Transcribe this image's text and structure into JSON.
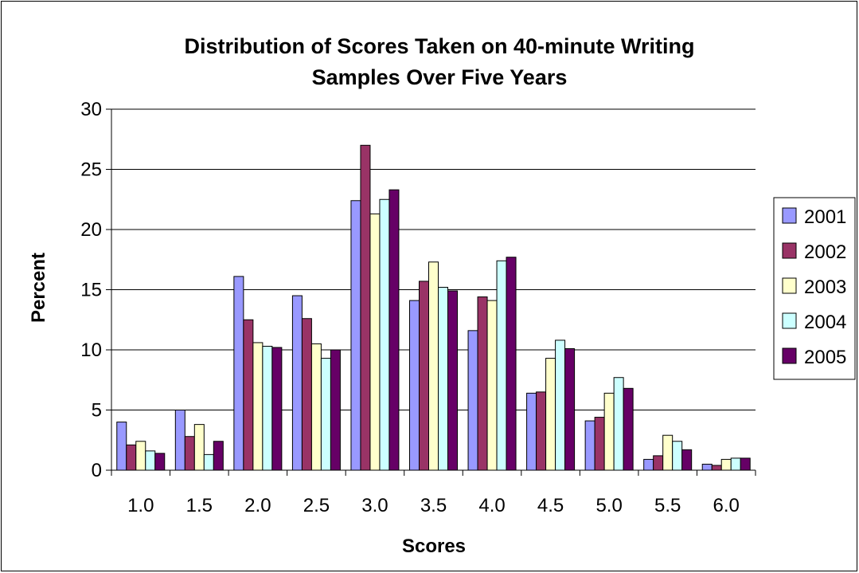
{
  "chart_data": {
    "type": "bar",
    "title": [
      "Distribution of Scores Taken on 40-minute Writing",
      "Samples Over Five Years"
    ],
    "xlabel": "Scores",
    "ylabel": "Percent",
    "categories": [
      "1.0",
      "1.5",
      "2.0",
      "2.5",
      "3.0",
      "3.5",
      "4.0",
      "4.5",
      "5.0",
      "5.5",
      "6.0"
    ],
    "ylim": [
      0,
      30
    ],
    "yticks": [
      0,
      5,
      10,
      15,
      20,
      25,
      30
    ],
    "grid": true,
    "legend_position": "right",
    "series": [
      {
        "name": "2001",
        "color": "#9999ff",
        "values": [
          4.0,
          5.0,
          16.1,
          14.5,
          22.4,
          14.1,
          11.6,
          6.4,
          4.1,
          0.9,
          0.5
        ]
      },
      {
        "name": "2002",
        "color": "#993366",
        "values": [
          2.1,
          2.8,
          12.5,
          12.6,
          27.0,
          15.7,
          14.4,
          6.5,
          4.4,
          1.2,
          0.4
        ]
      },
      {
        "name": "2003",
        "color": "#ffffcc",
        "values": [
          2.4,
          3.8,
          10.6,
          10.5,
          21.3,
          17.3,
          14.1,
          9.3,
          6.4,
          2.9,
          0.9
        ]
      },
      {
        "name": "2004",
        "color": "#ccffff",
        "values": [
          1.6,
          1.3,
          10.3,
          9.3,
          22.5,
          15.2,
          17.4,
          10.8,
          7.7,
          2.4,
          1.0
        ]
      },
      {
        "name": "2005",
        "color": "#660066",
        "values": [
          1.4,
          2.4,
          10.2,
          10.0,
          23.3,
          14.9,
          17.7,
          10.1,
          6.8,
          1.7,
          1.0
        ]
      }
    ]
  }
}
